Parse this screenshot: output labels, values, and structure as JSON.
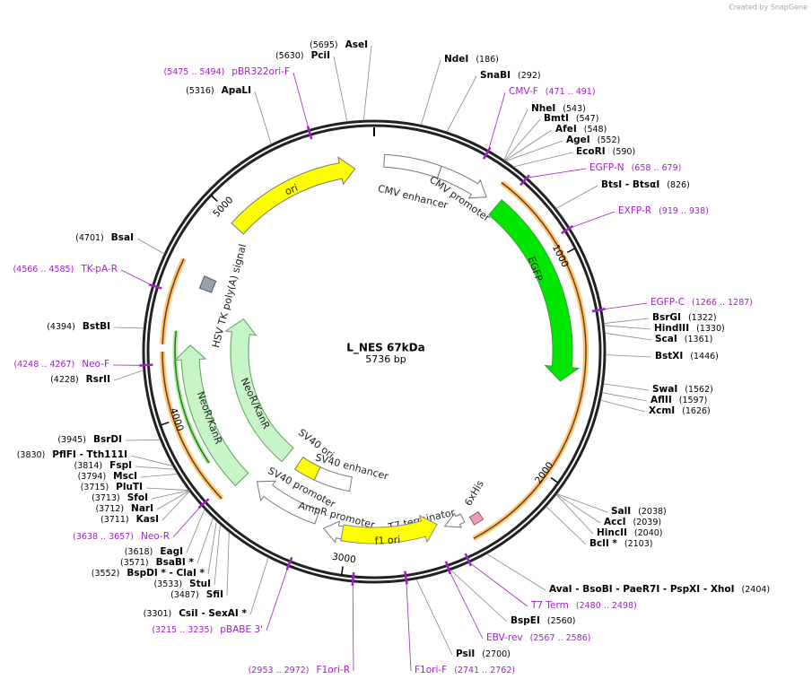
{
  "title": "L_NES 67kDa",
  "subtitle": "5736 bp",
  "watermark": "Created by SnapGene",
  "sites": [
    {
      "name": "AseI",
      "position": "(5695)",
      "color": "#000000"
    },
    {
      "name": "PciI",
      "position": "(5630)",
      "color": "#000000"
    },
    {
      "name": "pBR322ori-F",
      "position": "(5475 .. 5494)",
      "color": "#a020c8"
    },
    {
      "name": "ApaLI",
      "position": "(5316)",
      "color": "#000000"
    },
    {
      "name": "NdeI",
      "position": "(186)",
      "color": "#000000"
    },
    {
      "name": "SnaBI",
      "position": "(292)",
      "color": "#000000"
    },
    {
      "name": "CMV-F",
      "position": "(471 .. 491)",
      "color": "#a020c8"
    },
    {
      "name": "NheI",
      "position": "(543)",
      "color": "#000000"
    },
    {
      "name": "BmtI",
      "position": "(547)",
      "color": "#000000"
    },
    {
      "name": "AfeI",
      "position": "(548)",
      "color": "#000000"
    },
    {
      "name": "AgeI",
      "position": "(552)",
      "color": "#000000"
    },
    {
      "name": "EcoRI",
      "position": "(590)",
      "color": "#000000"
    },
    {
      "name": "EGFP-N",
      "position": "(658 .. 679)",
      "color": "#a020c8"
    },
    {
      "name": "BtsI - BtsαI",
      "position": "(826)",
      "color": "#000000"
    },
    {
      "name": "EXFP-R",
      "position": "(919 .. 938)",
      "color": "#a020c8"
    },
    {
      "name": "EGFP-C",
      "position": "(1266 .. 1287)",
      "color": "#a020c8"
    },
    {
      "name": "BsrGI",
      "position": "(1322)",
      "color": "#000000"
    },
    {
      "name": "HindIII",
      "position": "(1330)",
      "color": "#000000"
    },
    {
      "name": "ScaI",
      "position": "(1361)",
      "color": "#000000"
    },
    {
      "name": "BstXI",
      "position": "(1446)",
      "color": "#000000"
    },
    {
      "name": "SwaI",
      "position": "(1562)",
      "color": "#000000"
    },
    {
      "name": "AflII",
      "position": "(1597)",
      "color": "#000000"
    },
    {
      "name": "XcmI",
      "position": "(1626)",
      "color": "#000000"
    },
    {
      "name": "SalI",
      "position": "(2038)",
      "color": "#000000"
    },
    {
      "name": "AccI",
      "position": "(2039)",
      "color": "#000000"
    },
    {
      "name": "HincII",
      "position": "(2040)",
      "color": "#000000"
    },
    {
      "name": "BclI *",
      "position": "(2103)",
      "color": "#000000"
    },
    {
      "name": "AvaI - BsoBI - PaeR7I - PspXI - XhoI",
      "position": "(2404)",
      "color": "#000000"
    },
    {
      "name": "T7 Term",
      "position": "(2480 .. 2498)",
      "color": "#a020c8"
    },
    {
      "name": "BspEI",
      "position": "(2560)",
      "color": "#000000"
    },
    {
      "name": "EBV-rev",
      "position": "(2567 .. 2586)",
      "color": "#a020c8"
    },
    {
      "name": "PsiI",
      "position": "(2700)",
      "color": "#000000"
    },
    {
      "name": "F1ori-F",
      "position": "(2741 .. 2762)",
      "color": "#a020c8"
    },
    {
      "name": "F1ori-R",
      "position": "(2953 .. 2972)",
      "color": "#a020c8"
    },
    {
      "name": "pBABE 3'",
      "position": "(3215 .. 3235)",
      "color": "#a020c8"
    },
    {
      "name": "CsiI - SexAI *",
      "position": "(3301)",
      "color": "#000000"
    },
    {
      "name": "SfiI",
      "position": "(3487)",
      "color": "#000000"
    },
    {
      "name": "StuI",
      "position": "(3533)",
      "color": "#000000"
    },
    {
      "name": "BspDI * - ClaI *",
      "position": "(3552)",
      "color": "#000000"
    },
    {
      "name": "BsaBI *",
      "position": "(3571)",
      "color": "#000000"
    },
    {
      "name": "EagI",
      "position": "(3618)",
      "color": "#000000"
    },
    {
      "name": "Neo-R",
      "position": "(3638 .. 3657)",
      "color": "#a020c8"
    },
    {
      "name": "KasI",
      "position": "(3711)",
      "color": "#000000"
    },
    {
      "name": "NarI",
      "position": "(3712)",
      "color": "#000000"
    },
    {
      "name": "SfoI",
      "position": "(3713)",
      "color": "#000000"
    },
    {
      "name": "PluTI",
      "position": "(3715)",
      "color": "#000000"
    },
    {
      "name": "MscI",
      "position": "(3794)",
      "color": "#000000"
    },
    {
      "name": "FspI",
      "position": "(3814)",
      "color": "#000000"
    },
    {
      "name": "PflFI - Tth111I",
      "position": "(3830)",
      "color": "#000000"
    },
    {
      "name": "BsrDI",
      "position": "(3945)",
      "color": "#000000"
    },
    {
      "name": "RsrII",
      "position": "(4228)",
      "color": "#000000"
    },
    {
      "name": "Neo-F",
      "position": "(4248 .. 4267)",
      "color": "#a020c8"
    },
    {
      "name": "BstBI",
      "position": "(4394)",
      "color": "#000000"
    },
    {
      "name": "TK-pA-R",
      "position": "(4566 .. 4585)",
      "color": "#a020c8"
    },
    {
      "name": "BsaI",
      "position": "(4701)",
      "color": "#000000"
    }
  ],
  "features": [
    {
      "name": "ori",
      "color": "#ffff00"
    },
    {
      "name": "CMV enhancer",
      "color": "#ffffff"
    },
    {
      "name": "CMV promoter",
      "color": "#ffffff"
    },
    {
      "name": "EGFP",
      "color": "#00e600"
    },
    {
      "name": "HSV TK poly(A) signal",
      "color": "#98a2ad"
    },
    {
      "name": "NeoR/KanR",
      "color": "#c8f5c8"
    },
    {
      "name": "NeoR/KanR",
      "color": "#c8f5c8"
    },
    {
      "name": "SV40 ori",
      "color": "#ffff00"
    },
    {
      "name": "SV40 enhancer",
      "color": "#ffffff"
    },
    {
      "name": "SV40 promoter",
      "color": "#ffffff"
    },
    {
      "name": "AmpR promoter",
      "color": "#ffffff"
    },
    {
      "name": "T7 terminator",
      "color": "#ffffff"
    },
    {
      "name": "6xHis",
      "color": "#e8a0b4"
    },
    {
      "name": "f1 ori",
      "color": "#ffff00"
    }
  ],
  "ticks": [
    "1000",
    "2000",
    "3000",
    "4000",
    "5000"
  ]
}
